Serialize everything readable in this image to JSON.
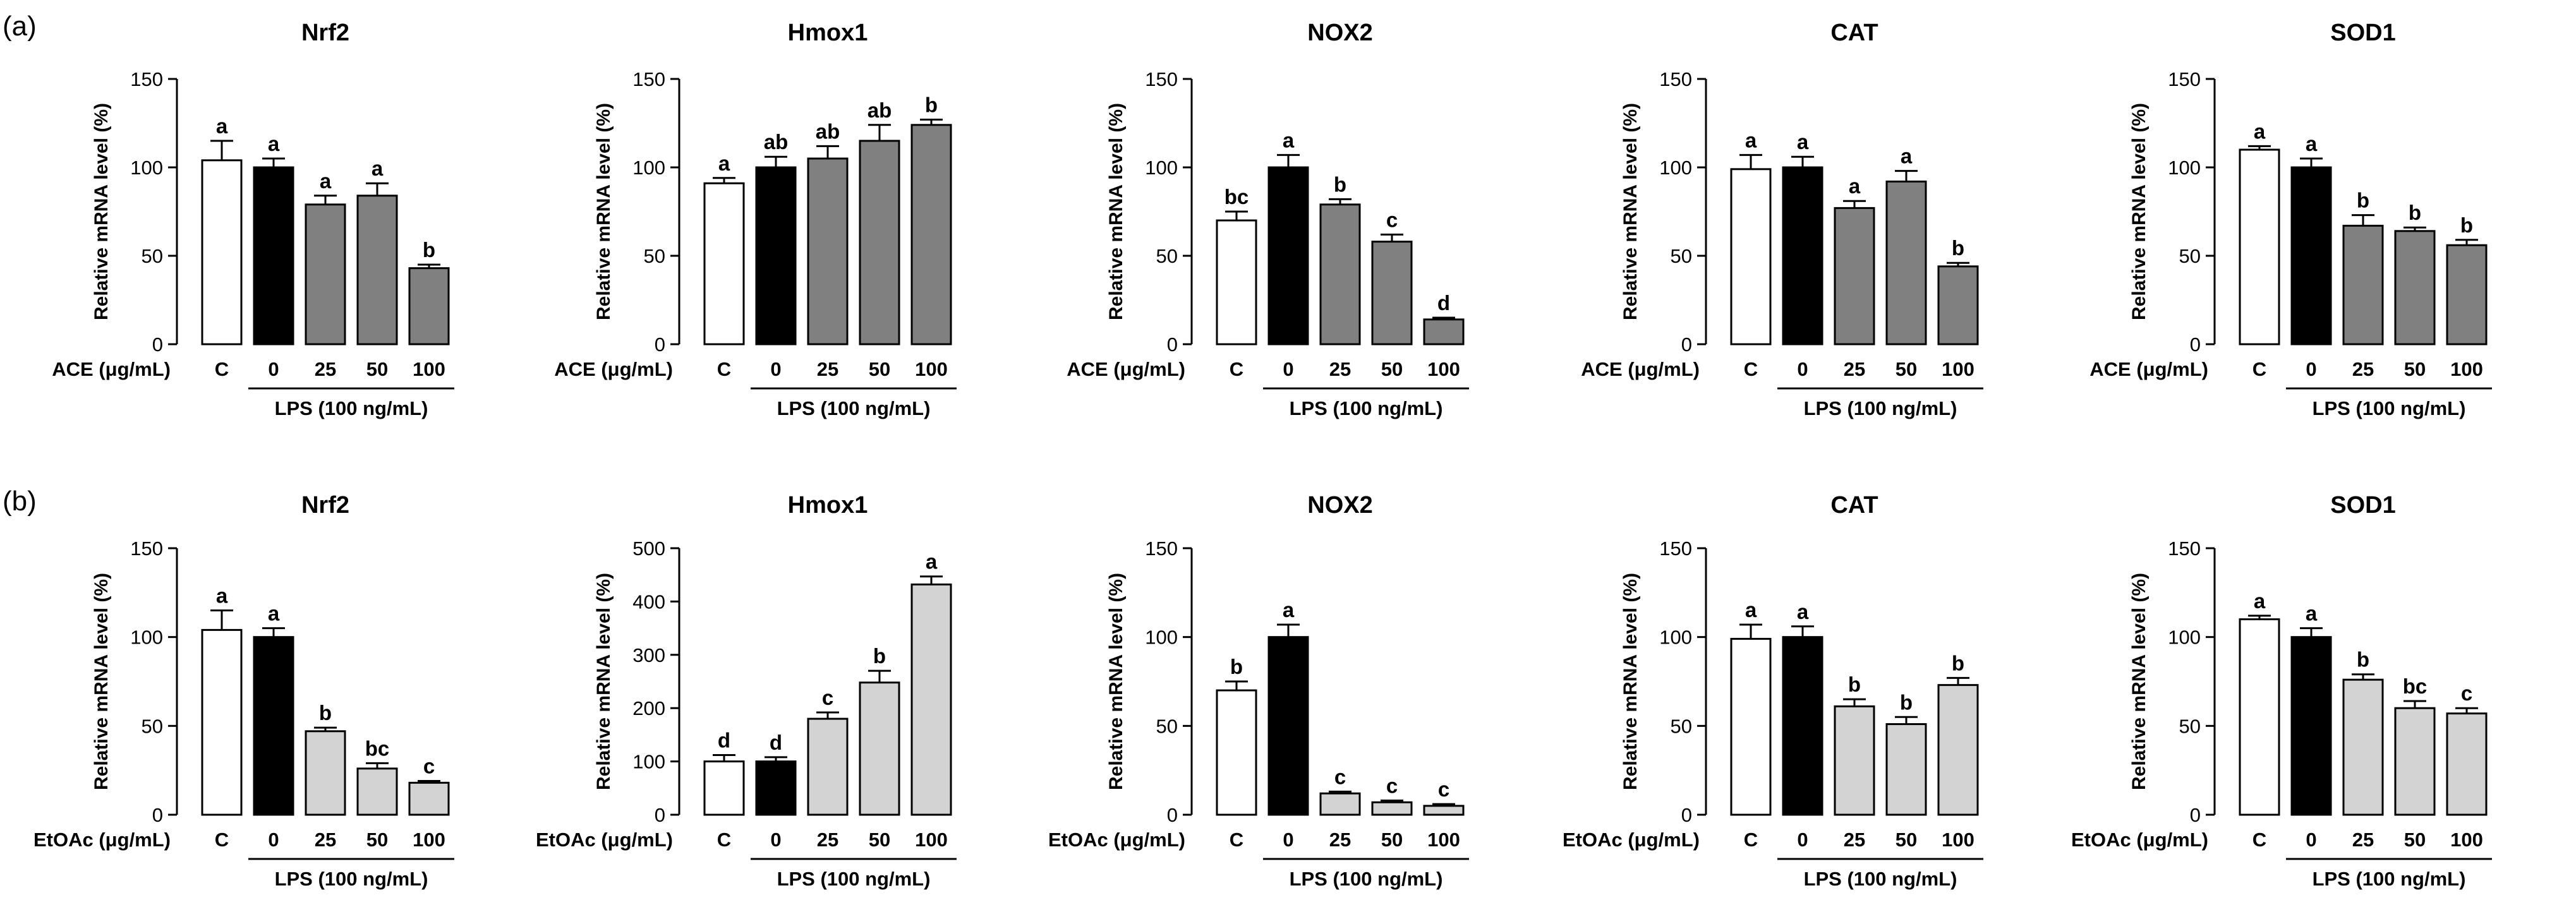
{
  "panels": [
    {
      "label": "(a)",
      "treatment_label": "ACE (μg/mL)",
      "lps_label": "LPS (100 ng/mL)",
      "bar_color": "#808080",
      "charts": [
        {
          "title": "Nrf2",
          "ylim": [
            0,
            150
          ],
          "ticks": [
            0,
            50,
            100,
            150
          ]
        },
        {
          "title": "Hmox1",
          "ylim": [
            0,
            150
          ],
          "ticks": [
            0,
            50,
            100,
            150
          ]
        },
        {
          "title": "NOX2",
          "ylim": [
            0,
            150
          ],
          "ticks": [
            0,
            50,
            100,
            150
          ]
        },
        {
          "title": "CAT",
          "ylim": [
            0,
            150
          ],
          "ticks": [
            0,
            50,
            100,
            150
          ]
        },
        {
          "title": "SOD1",
          "ylim": [
            0,
            150
          ],
          "ticks": [
            0,
            50,
            100,
            150
          ]
        }
      ]
    },
    {
      "label": "(b)",
      "treatment_label": "EtOAc (μg/mL)",
      "lps_label": "LPS (100 ng/mL)",
      "bar_color": "#d3d3d3",
      "charts": [
        {
          "title": "Nrf2",
          "ylim": [
            0,
            150
          ],
          "ticks": [
            0,
            50,
            100,
            150
          ]
        },
        {
          "title": "Hmox1",
          "ylim": [
            0,
            500
          ],
          "ticks": [
            0,
            100,
            200,
            300,
            400,
            500
          ]
        },
        {
          "title": "NOX2",
          "ylim": [
            0,
            150
          ],
          "ticks": [
            0,
            50,
            100,
            150
          ]
        },
        {
          "title": "CAT",
          "ylim": [
            0,
            150
          ],
          "ticks": [
            0,
            50,
            100,
            150
          ]
        },
        {
          "title": "SOD1",
          "ylim": [
            0,
            150
          ],
          "ticks": [
            0,
            50,
            100,
            150
          ]
        }
      ]
    }
  ],
  "chart_data": [
    {
      "type": "bar",
      "panel": "(a)",
      "title": "Nrf2",
      "ylabel": "Relative mRNA level (%)",
      "xlabel": "ACE (μg/mL)",
      "group_label": "LPS (100 ng/mL)",
      "categories": [
        "C",
        "0",
        "25",
        "50",
        "100"
      ],
      "values": [
        104,
        100,
        79,
        84,
        43
      ],
      "errors": [
        11,
        5,
        5,
        7,
        2
      ],
      "letters": [
        "a",
        "a",
        "a",
        "a",
        "b"
      ],
      "ylim": [
        0,
        150
      ],
      "ticks": [
        0,
        50,
        100,
        150
      ]
    },
    {
      "type": "bar",
      "panel": "(a)",
      "title": "Hmox1",
      "ylabel": "Relative mRNA level (%)",
      "xlabel": "ACE (μg/mL)",
      "group_label": "LPS (100 ng/mL)",
      "categories": [
        "C",
        "0",
        "25",
        "50",
        "100"
      ],
      "values": [
        91,
        100,
        105,
        115,
        124
      ],
      "errors": [
        3,
        6,
        7,
        9,
        3
      ],
      "letters": [
        "a",
        "ab",
        "ab",
        "ab",
        "b"
      ],
      "ylim": [
        0,
        150
      ],
      "ticks": [
        0,
        50,
        100,
        150
      ]
    },
    {
      "type": "bar",
      "panel": "(a)",
      "title": "NOX2",
      "ylabel": "Relative mRNA level (%)",
      "xlabel": "ACE (μg/mL)",
      "group_label": "LPS (100 ng/mL)",
      "categories": [
        "C",
        "0",
        "25",
        "50",
        "100"
      ],
      "values": [
        70,
        100,
        79,
        58,
        14
      ],
      "errors": [
        5,
        7,
        3,
        4,
        1
      ],
      "letters": [
        "bc",
        "a",
        "b",
        "c",
        "d"
      ],
      "ylim": [
        0,
        150
      ],
      "ticks": [
        0,
        50,
        100,
        150
      ]
    },
    {
      "type": "bar",
      "panel": "(a)",
      "title": "CAT",
      "ylabel": "Relative mRNA level (%)",
      "xlabel": "ACE (μg/mL)",
      "group_label": "LPS (100 ng/mL)",
      "categories": [
        "C",
        "0",
        "25",
        "50",
        "100"
      ],
      "values": [
        99,
        100,
        77,
        92,
        44
      ],
      "errors": [
        8,
        6,
        4,
        6,
        2
      ],
      "letters": [
        "a",
        "a",
        "a",
        "a",
        "b"
      ],
      "ylim": [
        0,
        150
      ],
      "ticks": [
        0,
        50,
        100,
        150
      ]
    },
    {
      "type": "bar",
      "panel": "(a)",
      "title": "SOD1",
      "ylabel": "Relative mRNA level (%)",
      "xlabel": "ACE (μg/mL)",
      "group_label": "LPS (100 ng/mL)",
      "categories": [
        "C",
        "0",
        "25",
        "50",
        "100"
      ],
      "values": [
        110,
        100,
        67,
        64,
        56
      ],
      "errors": [
        2,
        5,
        6,
        2,
        3
      ],
      "letters": [
        "a",
        "a",
        "b",
        "b",
        "b"
      ],
      "ylim": [
        0,
        150
      ],
      "ticks": [
        0,
        50,
        100,
        150
      ]
    },
    {
      "type": "bar",
      "panel": "(b)",
      "title": "Nrf2",
      "ylabel": "Relative mRNA level (%)",
      "xlabel": "EtOAc (μg/mL)",
      "group_label": "LPS (100 ng/mL)",
      "categories": [
        "C",
        "0",
        "25",
        "50",
        "100"
      ],
      "values": [
        104,
        100,
        47,
        26,
        18
      ],
      "errors": [
        11,
        5,
        2,
        3,
        1
      ],
      "letters": [
        "a",
        "a",
        "b",
        "bc",
        "c"
      ],
      "ylim": [
        0,
        150
      ],
      "ticks": [
        0,
        50,
        100,
        150
      ]
    },
    {
      "type": "bar",
      "panel": "(b)",
      "title": "Hmox1",
      "ylabel": "Relative mRNA level (%)",
      "xlabel": "EtOAc (μg/mL)",
      "group_label": "LPS (100 ng/mL)",
      "categories": [
        "C",
        "0",
        "25",
        "50",
        "100"
      ],
      "values": [
        100,
        100,
        180,
        248,
        432
      ],
      "errors": [
        12,
        8,
        12,
        22,
        15
      ],
      "letters": [
        "d",
        "d",
        "c",
        "b",
        "a"
      ],
      "ylim": [
        0,
        500
      ],
      "ticks": [
        0,
        100,
        200,
        300,
        400,
        500
      ]
    },
    {
      "type": "bar",
      "panel": "(b)",
      "title": "NOX2",
      "ylabel": "Relative mRNA level (%)",
      "xlabel": "EtOAc (μg/mL)",
      "group_label": "LPS (100 ng/mL)",
      "categories": [
        "C",
        "0",
        "25",
        "50",
        "100"
      ],
      "values": [
        70,
        100,
        12,
        7,
        5
      ],
      "errors": [
        5,
        7,
        1,
        1,
        1
      ],
      "letters": [
        "b",
        "a",
        "c",
        "c",
        "c"
      ],
      "ylim": [
        0,
        150
      ],
      "ticks": [
        0,
        50,
        100,
        150
      ]
    },
    {
      "type": "bar",
      "panel": "(b)",
      "title": "CAT",
      "ylabel": "Relative mRNA level (%)",
      "xlabel": "EtOAc (μg/mL)",
      "group_label": "LPS (100 ng/mL)",
      "categories": [
        "C",
        "0",
        "25",
        "50",
        "100"
      ],
      "values": [
        99,
        100,
        61,
        51,
        73
      ],
      "errors": [
        8,
        6,
        4,
        4,
        4
      ],
      "letters": [
        "a",
        "a",
        "b",
        "b",
        "b"
      ],
      "ylim": [
        0,
        150
      ],
      "ticks": [
        0,
        50,
        100,
        150
      ]
    },
    {
      "type": "bar",
      "panel": "(b)",
      "title": "SOD1",
      "ylabel": "Relative mRNA level (%)",
      "xlabel": "EtOAc (μg/mL)",
      "group_label": "LPS (100 ng/mL)",
      "categories": [
        "C",
        "0",
        "25",
        "50",
        "100"
      ],
      "values": [
        110,
        100,
        76,
        60,
        57
      ],
      "errors": [
        2,
        5,
        3,
        4,
        3
      ],
      "letters": [
        "a",
        "a",
        "b",
        "bc",
        "c"
      ],
      "ylim": [
        0,
        150
      ],
      "ticks": [
        0,
        50,
        100,
        150
      ]
    }
  ]
}
